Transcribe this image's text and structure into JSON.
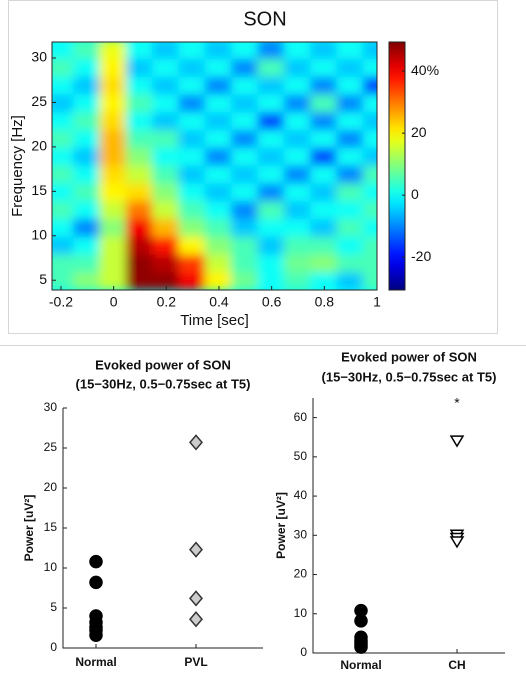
{
  "chart_data": [
    {
      "type": "heatmap",
      "title": "SON",
      "xlabel": "Time [sec]",
      "ylabel": "Frequency [Hz]",
      "x": [
        -0.2,
        -0.1,
        0,
        0.1,
        0.2,
        0.3,
        0.4,
        0.5,
        0.6,
        0.7,
        0.8,
        0.9,
        1.0
      ],
      "y": [
        5,
        7,
        9,
        11,
        13,
        15,
        17,
        19,
        21,
        23,
        25,
        27,
        29,
        31
      ],
      "values": [
        [
          5,
          10,
          15,
          48,
          48,
          40,
          20,
          8,
          0,
          5,
          0,
          -5,
          5
        ],
        [
          5,
          5,
          15,
          48,
          45,
          35,
          15,
          5,
          0,
          8,
          10,
          5,
          5
        ],
        [
          -5,
          0,
          15,
          45,
          38,
          20,
          10,
          5,
          -5,
          5,
          5,
          0,
          5
        ],
        [
          0,
          -10,
          10,
          40,
          25,
          10,
          5,
          -5,
          0,
          0,
          -5,
          5,
          0
        ],
        [
          5,
          0,
          15,
          30,
          15,
          5,
          0,
          -10,
          5,
          -5,
          0,
          0,
          5
        ],
        [
          0,
          5,
          20,
          22,
          10,
          0,
          -5,
          0,
          -10,
          0,
          -5,
          5,
          0
        ],
        [
          5,
          0,
          22,
          15,
          5,
          -5,
          0,
          -5,
          0,
          -10,
          0,
          -10,
          5
        ],
        [
          0,
          -5,
          25,
          10,
          0,
          0,
          -10,
          0,
          -5,
          0,
          -15,
          0,
          -5
        ],
        [
          5,
          0,
          25,
          5,
          5,
          -5,
          0,
          -10,
          0,
          -5,
          0,
          -10,
          0
        ],
        [
          0,
          5,
          22,
          0,
          -5,
          0,
          -5,
          0,
          -15,
          0,
          -10,
          0,
          -5
        ],
        [
          -5,
          0,
          20,
          5,
          0,
          -10,
          0,
          -5,
          0,
          -10,
          5,
          -10,
          0
        ],
        [
          0,
          -5,
          22,
          0,
          -5,
          0,
          -10,
          0,
          -5,
          0,
          -10,
          0,
          -15
        ],
        [
          5,
          0,
          20,
          -5,
          0,
          -5,
          0,
          -10,
          5,
          -5,
          0,
          -5,
          0
        ],
        [
          0,
          5,
          18,
          0,
          -5,
          0,
          -5,
          0,
          -10,
          0,
          -5,
          0,
          -5
        ]
      ],
      "xlim": [
        -0.234,
        1
      ],
      "ylim": [
        3.9,
        31.8
      ],
      "xticks": [
        -0.2,
        0,
        0.2,
        0.4,
        0.6,
        0.8,
        1
      ],
      "yticks": [
        5,
        10,
        15,
        20,
        25,
        30
      ],
      "colormap": "jet",
      "clim": [
        -30.6,
        49.4
      ],
      "cticks": [
        -20,
        0,
        20,
        {
          "value": 40,
          "label": "40%"
        }
      ]
    },
    {
      "type": "strip",
      "title": "Evoked power of SON",
      "subtitle": "(15−30Hz, 0.5−0.75sec at T5)",
      "ylabel": "Power [uV²]",
      "categories": [
        "Normal",
        "PVL"
      ],
      "values": [
        [
          10.8,
          8.2,
          4.0,
          3.2,
          2.6,
          2.2,
          1.6
        ],
        [
          25.7,
          12.3,
          6.2,
          3.6
        ]
      ],
      "markers": [
        {
          "shape": "circle",
          "fill": "#000000",
          "stroke": "#000000"
        },
        {
          "shape": "diamond",
          "fill": "#cccccc",
          "stroke": "#333333"
        }
      ],
      "ylim": [
        0,
        30
      ],
      "yticks": [
        0,
        5,
        10,
        15,
        20,
        25,
        30
      ]
    },
    {
      "type": "strip",
      "title": "Evoked power of SON",
      "subtitle": "(15−30Hz, 0.5−0.75sec  at T5)",
      "ylabel": "Power [uV²]",
      "categories": [
        "Normal",
        "CH"
      ],
      "values": [
        [
          10.8,
          8.2,
          4.0,
          3.2,
          2.6,
          2.0,
          1.5
        ],
        [
          54,
          30,
          29.2,
          28.3
        ]
      ],
      "markers": [
        {
          "shape": "circle",
          "fill": "#000000",
          "stroke": "#000000"
        },
        {
          "shape": "triangle-down",
          "fill": "#ffffff",
          "stroke": "#000000"
        }
      ],
      "annotation": "*",
      "ylim": [
        0,
        65
      ],
      "yticks": [
        0,
        10,
        20,
        30,
        40,
        50,
        60
      ]
    }
  ]
}
